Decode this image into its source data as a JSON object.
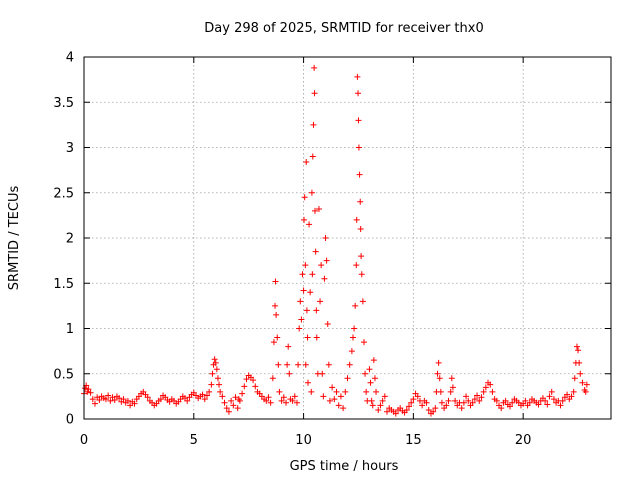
{
  "chart_data": {
    "type": "scatter",
    "title": "Day 298 of 2025, SRMTID for receiver thx0",
    "xlabel": "GPS time / hours",
    "ylabel": "SRMTID / TECUs",
    "xlim": [
      0,
      24
    ],
    "ylim": [
      0,
      4
    ],
    "xticks": [
      0,
      5,
      10,
      15,
      20
    ],
    "xtick_labels": [
      "0",
      "5",
      "10",
      "15",
      "20"
    ],
    "yticks": [
      0,
      0.5,
      1,
      1.5,
      2,
      2.5,
      3,
      3.5,
      4
    ],
    "ytick_labels": [
      "0",
      "0.5",
      "1",
      "1.5",
      "2",
      "2.5",
      "3",
      "3.5",
      "4"
    ],
    "grid": true,
    "marker": "+",
    "color": "#ff0000",
    "series": [
      {
        "name": "thx0",
        "points": [
          [
            0.0,
            0.28
          ],
          [
            0.05,
            0.34
          ],
          [
            0.1,
            0.37
          ],
          [
            0.15,
            0.3
          ],
          [
            0.2,
            0.33
          ],
          [
            0.3,
            0.29
          ],
          [
            0.4,
            0.22
          ],
          [
            0.5,
            0.17
          ],
          [
            0.6,
            0.24
          ],
          [
            0.7,
            0.21
          ],
          [
            0.8,
            0.25
          ],
          [
            0.9,
            0.23
          ],
          [
            1.0,
            0.22
          ],
          [
            1.1,
            0.26
          ],
          [
            1.2,
            0.2
          ],
          [
            1.3,
            0.24
          ],
          [
            1.4,
            0.21
          ],
          [
            1.5,
            0.25
          ],
          [
            1.6,
            0.23
          ],
          [
            1.7,
            0.19
          ],
          [
            1.8,
            0.22
          ],
          [
            1.9,
            0.18
          ],
          [
            2.0,
            0.2
          ],
          [
            2.1,
            0.15
          ],
          [
            2.2,
            0.19
          ],
          [
            2.3,
            0.17
          ],
          [
            2.4,
            0.22
          ],
          [
            2.5,
            0.25
          ],
          [
            2.6,
            0.28
          ],
          [
            2.7,
            0.3
          ],
          [
            2.8,
            0.27
          ],
          [
            2.9,
            0.24
          ],
          [
            3.0,
            0.2
          ],
          [
            3.1,
            0.18
          ],
          [
            3.2,
            0.15
          ],
          [
            3.3,
            0.17
          ],
          [
            3.4,
            0.2
          ],
          [
            3.5,
            0.22
          ],
          [
            3.6,
            0.26
          ],
          [
            3.7,
            0.24
          ],
          [
            3.8,
            0.21
          ],
          [
            3.9,
            0.19
          ],
          [
            4.0,
            0.22
          ],
          [
            4.1,
            0.2
          ],
          [
            4.2,
            0.17
          ],
          [
            4.3,
            0.19
          ],
          [
            4.4,
            0.22
          ],
          [
            4.5,
            0.25
          ],
          [
            4.6,
            0.23
          ],
          [
            4.7,
            0.2
          ],
          [
            4.8,
            0.24
          ],
          [
            4.9,
            0.27
          ],
          [
            5.0,
            0.29
          ],
          [
            5.1,
            0.26
          ],
          [
            5.2,
            0.23
          ],
          [
            5.3,
            0.25
          ],
          [
            5.4,
            0.27
          ],
          [
            5.5,
            0.22
          ],
          [
            5.6,
            0.26
          ],
          [
            5.7,
            0.3
          ],
          [
            5.8,
            0.38
          ],
          [
            5.85,
            0.5
          ],
          [
            5.9,
            0.6
          ],
          [
            5.95,
            0.66
          ],
          [
            6.0,
            0.62
          ],
          [
            6.05,
            0.55
          ],
          [
            6.1,
            0.45
          ],
          [
            6.15,
            0.38
          ],
          [
            6.2,
            0.3
          ],
          [
            6.3,
            0.25
          ],
          [
            6.4,
            0.18
          ],
          [
            6.5,
            0.12
          ],
          [
            6.6,
            0.08
          ],
          [
            6.7,
            0.2
          ],
          [
            6.8,
            0.15
          ],
          [
            6.9,
            0.24
          ],
          [
            7.0,
            0.12
          ],
          [
            7.05,
            0.22
          ],
          [
            7.1,
            0.2
          ],
          [
            7.2,
            0.28
          ],
          [
            7.3,
            0.36
          ],
          [
            7.4,
            0.44
          ],
          [
            7.5,
            0.48
          ],
          [
            7.6,
            0.46
          ],
          [
            7.7,
            0.43
          ],
          [
            7.8,
            0.36
          ],
          [
            7.9,
            0.3
          ],
          [
            8.0,
            0.28
          ],
          [
            8.1,
            0.25
          ],
          [
            8.2,
            0.22
          ],
          [
            8.3,
            0.2
          ],
          [
            8.4,
            0.24
          ],
          [
            8.5,
            0.18
          ],
          [
            8.6,
            0.45
          ],
          [
            8.65,
            0.85
          ],
          [
            8.7,
            1.25
          ],
          [
            8.72,
            1.52
          ],
          [
            8.75,
            1.15
          ],
          [
            8.8,
            0.9
          ],
          [
            8.85,
            0.6
          ],
          [
            8.9,
            0.3
          ],
          [
            9.0,
            0.2
          ],
          [
            9.1,
            0.24
          ],
          [
            9.2,
            0.18
          ],
          [
            9.25,
            0.6
          ],
          [
            9.3,
            0.8
          ],
          [
            9.35,
            0.5
          ],
          [
            9.4,
            0.22
          ],
          [
            9.5,
            0.2
          ],
          [
            9.6,
            0.25
          ],
          [
            9.7,
            0.18
          ],
          [
            9.75,
            0.6
          ],
          [
            9.8,
            1.0
          ],
          [
            9.85,
            1.3
          ],
          [
            9.9,
            1.1
          ],
          [
            9.95,
            1.6
          ],
          [
            10.0,
            1.42
          ],
          [
            10.02,
            2.2
          ],
          [
            10.05,
            2.45
          ],
          [
            10.08,
            1.7
          ],
          [
            10.1,
            0.6
          ],
          [
            10.12,
            2.84
          ],
          [
            10.15,
            1.2
          ],
          [
            10.18,
            0.9
          ],
          [
            10.2,
            0.4
          ],
          [
            10.25,
            2.15
          ],
          [
            10.3,
            1.4
          ],
          [
            10.35,
            0.3
          ],
          [
            10.38,
            2.5
          ],
          [
            10.4,
            1.6
          ],
          [
            10.42,
            2.9
          ],
          [
            10.45,
            3.25
          ],
          [
            10.48,
            3.88
          ],
          [
            10.5,
            3.6
          ],
          [
            10.52,
            2.3
          ],
          [
            10.55,
            1.85
          ],
          [
            10.58,
            1.2
          ],
          [
            10.6,
            0.9
          ],
          [
            10.65,
            0.5
          ],
          [
            10.7,
            2.32
          ],
          [
            10.75,
            1.3
          ],
          [
            10.8,
            1.7
          ],
          [
            10.85,
            0.5
          ],
          [
            10.9,
            0.25
          ],
          [
            10.95,
            1.55
          ],
          [
            11.0,
            2.0
          ],
          [
            11.05,
            1.75
          ],
          [
            11.1,
            1.05
          ],
          [
            11.15,
            0.6
          ],
          [
            11.2,
            0.2
          ],
          [
            11.3,
            0.35
          ],
          [
            11.4,
            0.22
          ],
          [
            11.5,
            0.3
          ],
          [
            11.6,
            0.15
          ],
          [
            11.7,
            0.25
          ],
          [
            11.8,
            0.12
          ],
          [
            11.9,
            0.3
          ],
          [
            12.0,
            0.45
          ],
          [
            12.1,
            0.6
          ],
          [
            12.2,
            0.75
          ],
          [
            12.25,
            0.9
          ],
          [
            12.3,
            1.0
          ],
          [
            12.35,
            1.25
          ],
          [
            12.4,
            1.7
          ],
          [
            12.42,
            2.2
          ],
          [
            12.45,
            3.78
          ],
          [
            12.48,
            3.6
          ],
          [
            12.5,
            3.3
          ],
          [
            12.52,
            3.0
          ],
          [
            12.55,
            2.7
          ],
          [
            12.58,
            2.4
          ],
          [
            12.6,
            2.1
          ],
          [
            12.62,
            1.8
          ],
          [
            12.65,
            1.6
          ],
          [
            12.7,
            1.3
          ],
          [
            12.75,
            0.85
          ],
          [
            12.8,
            0.5
          ],
          [
            12.85,
            0.3
          ],
          [
            12.9,
            0.2
          ],
          [
            13.0,
            0.55
          ],
          [
            13.05,
            0.4
          ],
          [
            13.1,
            0.2
          ],
          [
            13.15,
            0.15
          ],
          [
            13.2,
            0.65
          ],
          [
            13.25,
            0.45
          ],
          [
            13.3,
            0.3
          ],
          [
            13.4,
            0.1
          ],
          [
            13.5,
            0.15
          ],
          [
            13.6,
            0.2
          ],
          [
            13.7,
            0.25
          ],
          [
            13.8,
            0.08
          ],
          [
            13.9,
            0.12
          ],
          [
            14.0,
            0.1
          ],
          [
            14.1,
            0.08
          ],
          [
            14.2,
            0.06
          ],
          [
            14.3,
            0.1
          ],
          [
            14.4,
            0.12
          ],
          [
            14.5,
            0.09
          ],
          [
            14.6,
            0.07
          ],
          [
            14.7,
            0.1
          ],
          [
            14.8,
            0.14
          ],
          [
            14.9,
            0.18
          ],
          [
            15.0,
            0.22
          ],
          [
            15.1,
            0.28
          ],
          [
            15.2,
            0.25
          ],
          [
            15.3,
            0.2
          ],
          [
            15.4,
            0.15
          ],
          [
            15.5,
            0.2
          ],
          [
            15.6,
            0.18
          ],
          [
            15.7,
            0.1
          ],
          [
            15.8,
            0.06
          ],
          [
            15.9,
            0.08
          ],
          [
            16.0,
            0.12
          ],
          [
            16.05,
            0.3
          ],
          [
            16.1,
            0.5
          ],
          [
            16.15,
            0.62
          ],
          [
            16.2,
            0.45
          ],
          [
            16.25,
            0.3
          ],
          [
            16.3,
            0.18
          ],
          [
            16.4,
            0.12
          ],
          [
            16.5,
            0.15
          ],
          [
            16.6,
            0.2
          ],
          [
            16.7,
            0.3
          ],
          [
            16.75,
            0.45
          ],
          [
            16.8,
            0.35
          ],
          [
            16.9,
            0.2
          ],
          [
            17.0,
            0.15
          ],
          [
            17.1,
            0.18
          ],
          [
            17.2,
            0.12
          ],
          [
            17.3,
            0.18
          ],
          [
            17.4,
            0.25
          ],
          [
            17.5,
            0.2
          ],
          [
            17.6,
            0.15
          ],
          [
            17.7,
            0.18
          ],
          [
            17.8,
            0.22
          ],
          [
            17.9,
            0.26
          ],
          [
            18.0,
            0.2
          ],
          [
            18.1,
            0.24
          ],
          [
            18.2,
            0.3
          ],
          [
            18.3,
            0.35
          ],
          [
            18.4,
            0.4
          ],
          [
            18.5,
            0.38
          ],
          [
            18.6,
            0.3
          ],
          [
            18.7,
            0.22
          ],
          [
            18.8,
            0.2
          ],
          [
            18.9,
            0.15
          ],
          [
            19.0,
            0.12
          ],
          [
            19.1,
            0.18
          ],
          [
            19.2,
            0.2
          ],
          [
            19.3,
            0.16
          ],
          [
            19.4,
            0.14
          ],
          [
            19.5,
            0.18
          ],
          [
            19.6,
            0.22
          ],
          [
            19.7,
            0.2
          ],
          [
            19.8,
            0.18
          ],
          [
            19.9,
            0.15
          ],
          [
            20.0,
            0.17
          ],
          [
            20.1,
            0.2
          ],
          [
            20.2,
            0.15
          ],
          [
            20.3,
            0.18
          ],
          [
            20.4,
            0.22
          ],
          [
            20.5,
            0.2
          ],
          [
            20.6,
            0.18
          ],
          [
            20.7,
            0.16
          ],
          [
            20.8,
            0.2
          ],
          [
            20.9,
            0.23
          ],
          [
            21.0,
            0.2
          ],
          [
            21.1,
            0.16
          ],
          [
            21.2,
            0.25
          ],
          [
            21.3,
            0.3
          ],
          [
            21.4,
            0.22
          ],
          [
            21.5,
            0.18
          ],
          [
            21.6,
            0.2
          ],
          [
            21.7,
            0.15
          ],
          [
            21.8,
            0.2
          ],
          [
            21.9,
            0.24
          ],
          [
            22.0,
            0.27
          ],
          [
            22.1,
            0.22
          ],
          [
            22.2,
            0.25
          ],
          [
            22.3,
            0.3
          ],
          [
            22.35,
            0.45
          ],
          [
            22.4,
            0.62
          ],
          [
            22.45,
            0.8
          ],
          [
            22.5,
            0.76
          ],
          [
            22.55,
            0.62
          ],
          [
            22.6,
            0.5
          ],
          [
            22.7,
            0.4
          ],
          [
            22.8,
            0.32
          ],
          [
            22.85,
            0.3
          ],
          [
            22.9,
            0.38
          ]
        ]
      }
    ]
  }
}
